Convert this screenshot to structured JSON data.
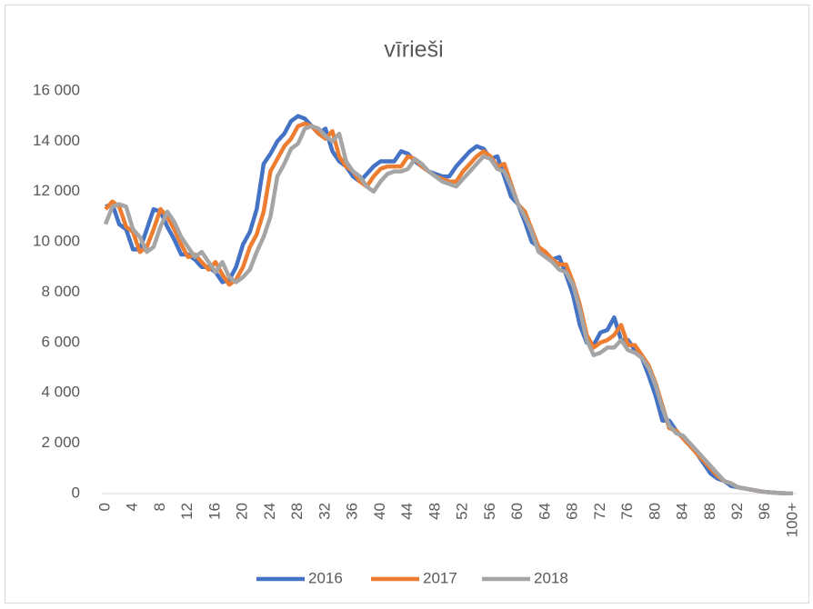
{
  "chart_data": {
    "type": "line",
    "title": "vīrieši",
    "categories": [
      "0",
      null,
      null,
      null,
      "4",
      null,
      null,
      null,
      "8",
      null,
      null,
      null,
      "12",
      null,
      null,
      null,
      "16",
      null,
      null,
      null,
      "20",
      null,
      null,
      null,
      "24",
      null,
      null,
      null,
      "28",
      null,
      null,
      null,
      "32",
      null,
      null,
      null,
      "36",
      null,
      null,
      null,
      "40",
      null,
      null,
      null,
      "44",
      null,
      null,
      null,
      "48",
      null,
      null,
      null,
      "52",
      null,
      null,
      null,
      "56",
      null,
      null,
      null,
      "60",
      null,
      null,
      null,
      "64",
      null,
      null,
      null,
      "68",
      null,
      null,
      null,
      "72",
      null,
      null,
      null,
      "76",
      null,
      null,
      null,
      "80",
      null,
      null,
      null,
      "84",
      null,
      null,
      null,
      "88",
      null,
      null,
      null,
      "92",
      null,
      null,
      null,
      "96",
      null,
      null,
      null,
      "100+"
    ],
    "series": [
      {
        "name": "2016",
        "color": "#4472c4",
        "values": [
          11400,
          11500,
          10700,
          10500,
          9700,
          9700,
          10500,
          11300,
          11200,
          10600,
          10100,
          9500,
          9500,
          9300,
          9000,
          9000,
          8800,
          8400,
          8500,
          9000,
          9900,
          10400,
          11300,
          13100,
          13500,
          14000,
          14300,
          14800,
          15000,
          14900,
          14600,
          14300,
          14500,
          13600,
          13200,
          13000,
          12600,
          12400,
          12700,
          13000,
          13200,
          13200,
          13200,
          13600,
          13500,
          13200,
          13000,
          12800,
          12700,
          12600,
          12600,
          13000,
          13300,
          13600,
          13800,
          13700,
          13300,
          13400,
          12600,
          11800,
          11500,
          10800,
          10000,
          9800,
          9500,
          9300,
          9400,
          8700,
          7900,
          6700,
          6000,
          5900,
          6400,
          6500,
          7000,
          6100,
          6100,
          5700,
          5400,
          4700,
          3900,
          2900,
          2900,
          2500,
          2200,
          1900,
          1600,
          1200,
          800,
          600,
          500,
          300,
          250,
          200,
          150,
          100,
          60,
          40,
          20,
          10,
          10
        ]
      },
      {
        "name": "2017",
        "color": "#ed7d31",
        "values": [
          11300,
          11600,
          11400,
          10600,
          10400,
          9600,
          9800,
          10500,
          11300,
          11000,
          10500,
          9900,
          9400,
          9500,
          9200,
          8900,
          9200,
          8700,
          8300,
          8500,
          9000,
          9800,
          10300,
          11200,
          12800,
          13300,
          13800,
          14100,
          14600,
          14700,
          14600,
          14300,
          14100,
          14400,
          13400,
          13000,
          12800,
          12400,
          12200,
          12600,
          12900,
          13000,
          13000,
          13000,
          13400,
          13300,
          13000,
          12800,
          12600,
          12500,
          12400,
          12400,
          12800,
          13100,
          13400,
          13600,
          13400,
          13000,
          13100,
          12300,
          11500,
          11200,
          10500,
          9800,
          9600,
          9300,
          9100,
          9100,
          8400,
          7500,
          6300,
          5800,
          6000,
          6100,
          6300,
          6700,
          5900,
          5900,
          5500,
          5100,
          4400,
          3500,
          2600,
          2500,
          2200,
          1900,
          1600,
          1300,
          1000,
          700,
          500,
          400,
          250,
          200,
          150,
          100,
          60,
          40,
          20,
          10,
          10
        ]
      },
      {
        "name": "2018",
        "color": "#a5a5a5",
        "values": [
          10700,
          11400,
          11500,
          11400,
          10500,
          10200,
          9600,
          9800,
          10600,
          11200,
          10800,
          10200,
          9800,
          9400,
          9600,
          9200,
          8800,
          9200,
          8600,
          8400,
          8600,
          8900,
          9600,
          10200,
          11000,
          12600,
          13100,
          13700,
          13900,
          14500,
          14600,
          14500,
          14200,
          14000,
          14300,
          13200,
          12800,
          12600,
          12200,
          12000,
          12400,
          12700,
          12800,
          12800,
          12900,
          13300,
          13100,
          12800,
          12600,
          12400,
          12300,
          12200,
          12500,
          12800,
          13100,
          13400,
          13300,
          12900,
          12800,
          12200,
          11500,
          11000,
          10400,
          9600,
          9400,
          9200,
          8900,
          8800,
          8300,
          7300,
          6100,
          5500,
          5600,
          5800,
          5800,
          6100,
          5700,
          5600,
          5400,
          5000,
          4300,
          3400,
          2700,
          2400,
          2300,
          2000,
          1700,
          1400,
          1100,
          800,
          500,
          400,
          250,
          200,
          150,
          100,
          60,
          40,
          20,
          10,
          10
        ]
      }
    ],
    "ylim": [
      0,
      16000
    ],
    "yticks": [
      0,
      {
        "value": 2000,
        "label": "2 000"
      },
      {
        "value": 4000,
        "label": "4 000"
      },
      {
        "value": 6000,
        "label": "6 000"
      },
      {
        "value": 8000,
        "label": "8 000"
      },
      {
        "value": 10000,
        "label": "10 000"
      },
      {
        "value": 12000,
        "label": "12 000"
      },
      {
        "value": 14000,
        "label": "14 000"
      },
      {
        "value": 16000,
        "label": "16 000"
      }
    ],
    "legend": "bottom"
  }
}
